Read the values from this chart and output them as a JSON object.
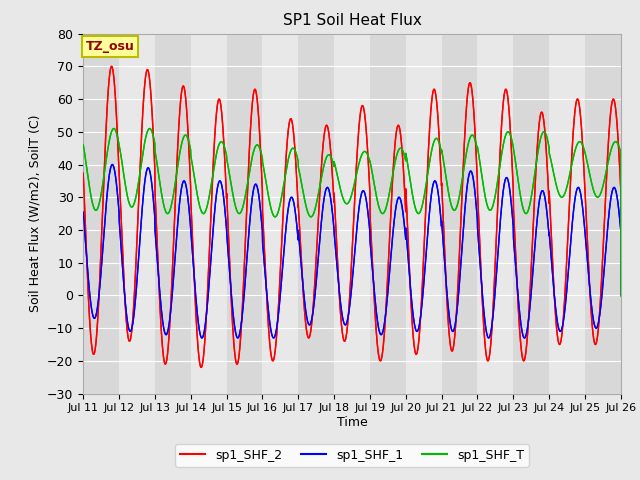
{
  "title": "SP1 Soil Heat Flux",
  "xlabel": "Time",
  "ylabel": "Soil Heat Flux (W/m2), SoilT (C)",
  "ylim": [
    -30,
    80
  ],
  "yticks": [
    -30,
    -20,
    -10,
    0,
    10,
    20,
    30,
    40,
    50,
    60,
    70,
    80
  ],
  "background_color": "#e8e8e8",
  "plot_bg_color": "#dcdcdc",
  "legend_labels": [
    "sp1_SHF_2",
    "sp1_SHF_1",
    "sp1_SHF_T"
  ],
  "legend_colors": [
    "#ff0000",
    "#0000ff",
    "#00bb00"
  ],
  "tz_label": "TZ_osu",
  "tz_bg": "#ffff99",
  "tz_border": "#bbbb00",
  "x_tick_days": [
    11,
    12,
    13,
    14,
    15,
    16,
    17,
    18,
    19,
    20,
    21,
    22,
    23,
    24,
    25,
    26
  ],
  "n_days": 15,
  "red_maxs": [
    70,
    69,
    64,
    60,
    63,
    54,
    52,
    58,
    52,
    63,
    65,
    63,
    56,
    60,
    60
  ],
  "red_mins": [
    -18,
    -14,
    -21,
    -22,
    -21,
    -20,
    -13,
    -14,
    -20,
    -18,
    -17,
    -20,
    -20,
    -15,
    -15
  ],
  "blue_maxs": [
    40,
    39,
    35,
    35,
    34,
    30,
    33,
    32,
    30,
    35,
    38,
    36,
    32,
    33,
    33
  ],
  "blue_mins": [
    -7,
    -11,
    -12,
    -13,
    -13,
    -13,
    -9,
    -9,
    -12,
    -11,
    -11,
    -13,
    -13,
    -11,
    -10
  ],
  "green_maxs": [
    51,
    51,
    49,
    47,
    46,
    45,
    43,
    44,
    45,
    48,
    49,
    50,
    50,
    47,
    47
  ],
  "green_mins": [
    26,
    27,
    25,
    25,
    25,
    24,
    24,
    28,
    25,
    25,
    26,
    26,
    25,
    30,
    30
  ],
  "red_peak_hour": 13.0,
  "blue_peak_hour": 13.5,
  "green_peak_hour": 14.5
}
